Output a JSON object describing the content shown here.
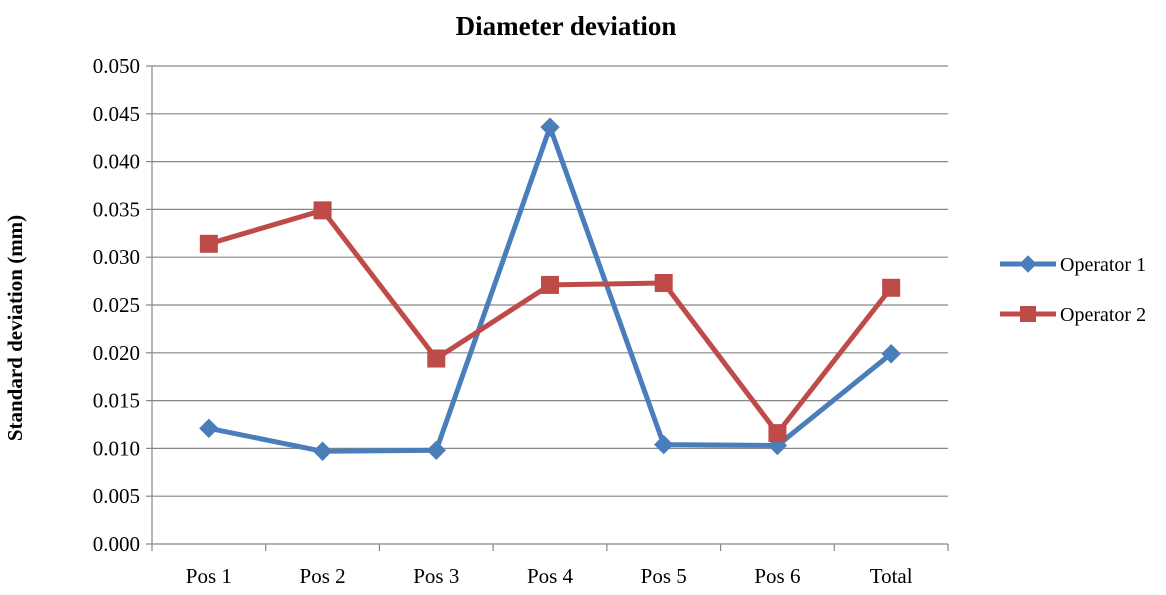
{
  "chart_data": {
    "type": "line",
    "title": "Diameter deviation",
    "xlabel": "",
    "ylabel": "Standard deviation (mm)",
    "categories": [
      "Pos 1",
      "Pos 2",
      "Pos 3",
      "Pos 4",
      "Pos 5",
      "Pos 6",
      "Total"
    ],
    "ylim": [
      0,
      0.05
    ],
    "yticks": [
      "0.000",
      "0.005",
      "0.010",
      "0.015",
      "0.020",
      "0.025",
      "0.030",
      "0.035",
      "0.040",
      "0.045",
      "0.050"
    ],
    "grid": true,
    "legend_position": "right",
    "series": [
      {
        "name": "Operator 1",
        "color": "#4a7ebb",
        "marker": "diamond",
        "values": [
          0.0121,
          0.0097,
          0.0098,
          0.0436,
          0.0104,
          0.0103,
          0.0199
        ]
      },
      {
        "name": "Operator 2",
        "color": "#be4b48",
        "marker": "square",
        "values": [
          0.0314,
          0.0349,
          0.0194,
          0.0271,
          0.0273,
          0.0116,
          0.0268
        ]
      }
    ]
  }
}
